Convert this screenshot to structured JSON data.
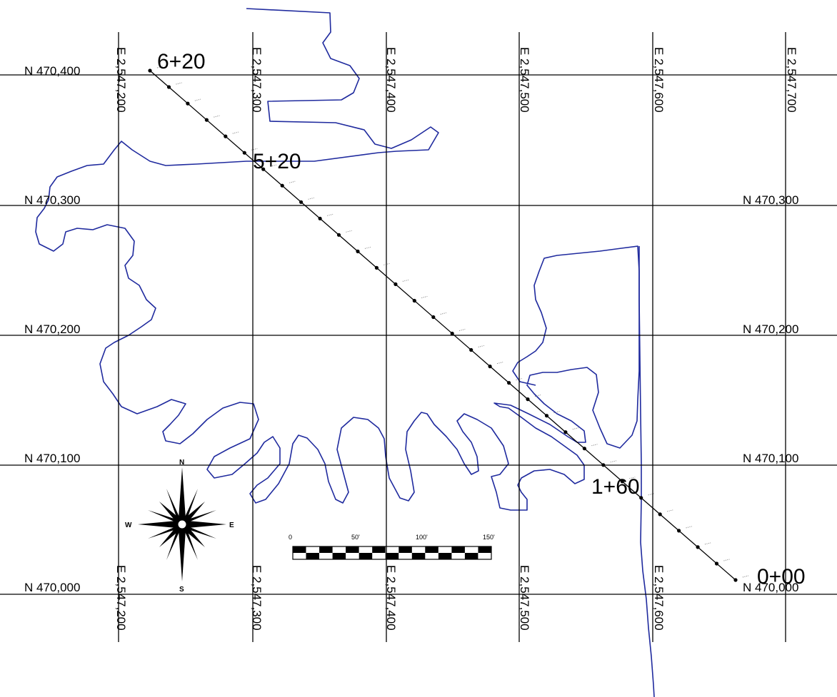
{
  "map": {
    "northing_labels": [
      "N 470,400",
      "N 470,300",
      "N 470,200",
      "N 470,100",
      "N 470,000"
    ],
    "easting_labels": [
      "E 2,547,200",
      "E 2,547,300",
      "E 2,547,400",
      "E 2,547,500",
      "E 2,547,600",
      "E 2,547,700"
    ],
    "stations": {
      "s620": "6+20",
      "s520": "5+20",
      "s160": "1+60",
      "s000": "0+00"
    },
    "scale_bar": {
      "labels": [
        "0",
        "50'",
        "100'",
        "150'"
      ]
    },
    "compass": {
      "north": "N",
      "south": "S",
      "east": "E",
      "west": "W"
    },
    "colors": {
      "shoreline": "#1f2a9e",
      "grid": "#000000",
      "alignment": "#000000"
    }
  }
}
